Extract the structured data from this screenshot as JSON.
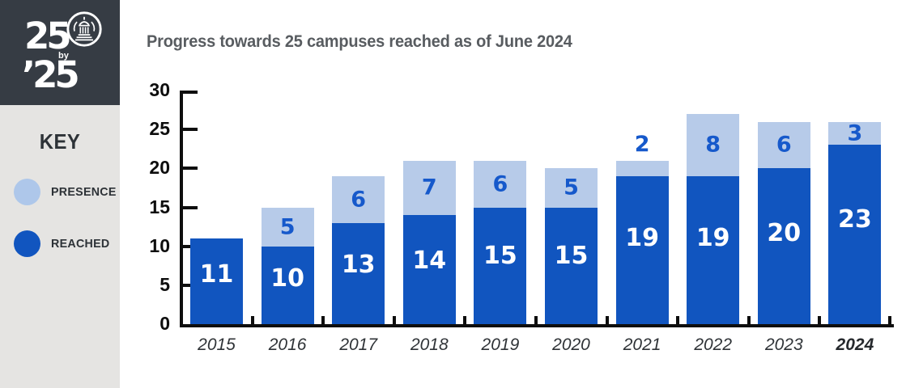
{
  "sidebar": {
    "logo": {
      "line1": "25",
      "by": "by",
      "line2": "’25"
    },
    "key_title": "KEY",
    "legend": [
      {
        "id": "presence",
        "label": "PRESENCE",
        "color": "#aec7ea"
      },
      {
        "id": "reached",
        "label": "REACHED",
        "color": "#1155bf"
      }
    ]
  },
  "chart_data": {
    "type": "bar",
    "stacked": true,
    "title": "Progress towards 25 campuses reached as of June 2024",
    "categories": [
      "2015",
      "2016",
      "2017",
      "2018",
      "2019",
      "2020",
      "2021",
      "2022",
      "2023",
      "2024"
    ],
    "series": [
      {
        "name": "REACHED",
        "color": "#1155bf",
        "label_color": "#ffffff",
        "values": [
          11,
          10,
          13,
          14,
          15,
          15,
          19,
          19,
          20,
          23
        ]
      },
      {
        "name": "PRESENCE",
        "color": "#b7cbe9",
        "label_color": "#1659cb",
        "values": [
          0,
          5,
          6,
          7,
          6,
          5,
          2,
          8,
          6,
          3
        ]
      }
    ],
    "totals": [
      11,
      15,
      19,
      21,
      21,
      20,
      21,
      27,
      26,
      26
    ],
    "ylim": [
      0,
      30
    ],
    "yticks": [
      0,
      5,
      10,
      15,
      20,
      25,
      30
    ],
    "xlabel": "",
    "ylabel": "",
    "grid": false,
    "legend_position": "left-sidebar",
    "emphasized_category": "2024"
  },
  "colors": {
    "logo_bg": "#363c44",
    "sidebar_bg": "#e5e4e2",
    "axis": "#0e0e0e",
    "title_text": "#585c60",
    "bar_dark_blue": "#1155bf",
    "bar_light_blue": "#b7cbe9"
  }
}
